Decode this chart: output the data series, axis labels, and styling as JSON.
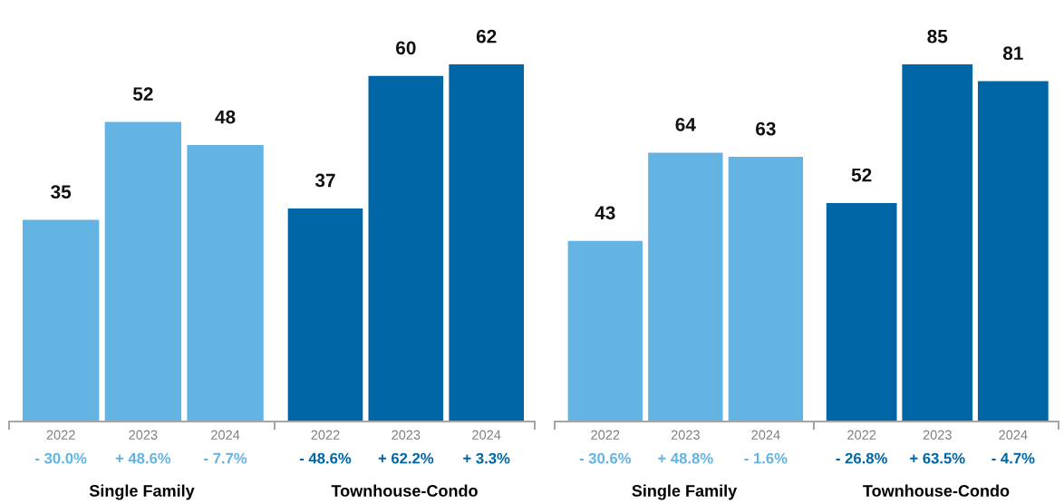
{
  "chart_data": [
    {
      "type": "bar",
      "xlabel": "Single Family",
      "categories": [
        "2022",
        "2023",
        "2024"
      ],
      "values": [
        35,
        52,
        48
      ],
      "color": "#63b3e3",
      "data_labels": true,
      "tick_labels": "x",
      "annotations": [
        "- 30.0%",
        "+ 48.6%",
        "- 7.7%"
      ]
    },
    {
      "type": "bar",
      "xlabel": "Townhouse-Condo",
      "categories": [
        "2022",
        "2023",
        "2024"
      ],
      "values": [
        37,
        60,
        62
      ],
      "color": "#0065a4",
      "data_labels": true,
      "tick_labels": "x",
      "annotations": [
        "- 48.6%",
        "+ 62.2%",
        "+ 3.3%"
      ]
    },
    {
      "type": "bar",
      "xlabel": "Single Family",
      "categories": [
        "2022",
        "2023",
        "2024"
      ],
      "values": [
        43,
        64,
        63
      ],
      "color": "#63b3e3",
      "data_labels": true,
      "tick_labels": "x",
      "annotations": [
        "- 30.6%",
        "+ 48.8%",
        "- 1.6%"
      ]
    },
    {
      "type": "bar",
      "xlabel": "Townhouse-Condo",
      "categories": [
        "2022",
        "2023",
        "2024"
      ],
      "values": [
        52,
        85,
        81
      ],
      "color": "#0065a4",
      "data_labels": true,
      "tick_labels": "x",
      "annotations": [
        "- 26.8%",
        "+ 63.5%",
        "- 4.7%"
      ]
    }
  ]
}
